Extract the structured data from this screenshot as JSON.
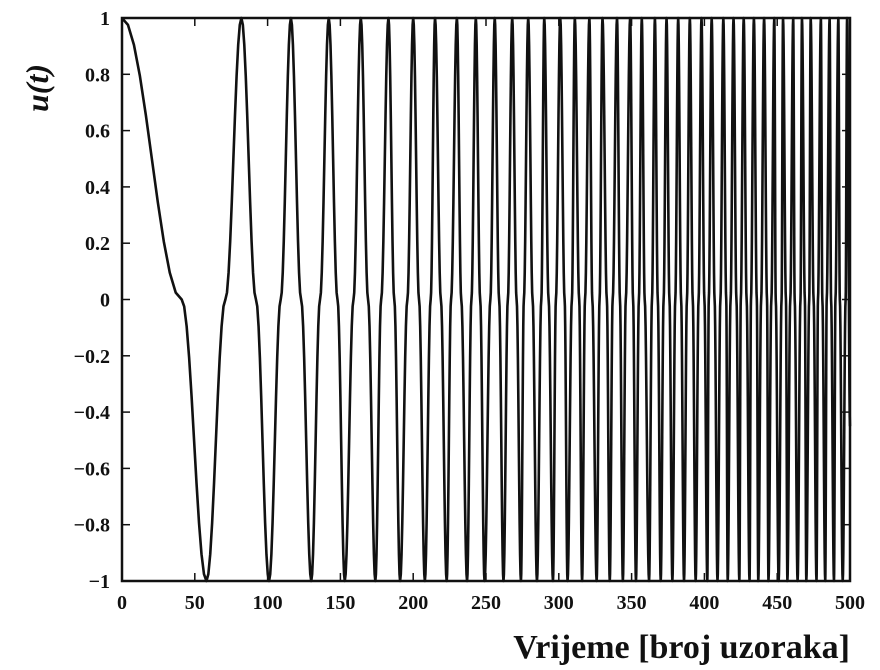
{
  "chart_data": {
    "type": "line",
    "title": "",
    "xlabel": "Vrijeme [broj uzoraka]",
    "ylabel": "u(t)",
    "xlim": [
      0,
      500
    ],
    "ylim": [
      -1,
      1
    ],
    "grid": false,
    "x_ticks": [
      0,
      50,
      100,
      150,
      200,
      250,
      300,
      350,
      400,
      450,
      500
    ],
    "x_tick_labels": [
      "0",
      "50",
      "100",
      "150",
      "200",
      "250",
      "300",
      "350",
      "400",
      "450",
      "500"
    ],
    "y_ticks": [
      1,
      0.8,
      0.6,
      0.4,
      0.2,
      0,
      -0.2,
      -0.4,
      -0.6,
      -0.8,
      -1
    ],
    "y_tick_labels": [
      "1",
      "0.8",
      "0.6",
      "0.4",
      "0.2",
      "0",
      "−0.2",
      "−0.4",
      "−0.6",
      "−0.8",
      "−1"
    ],
    "series": [
      {
        "signal": "linear chirp u(t) = cos(pi * t^2 / 6728), t = 0..500",
        "x": [
          0,
          41,
          58,
          71,
          82,
          92,
          101,
          109,
          116,
          123,
          130,
          136,
          142,
          148,
          153,
          159,
          164,
          169,
          174,
          178,
          183,
          187,
          191,
          196,
          200,
          204,
          208,
          212,
          215,
          219,
          223,
          226,
          230,
          233,
          237,
          240,
          243,
          246,
          249,
          253,
          256,
          259,
          262,
          265,
          268,
          271,
          274,
          276,
          279,
          282,
          285,
          288,
          290,
          293,
          296,
          298,
          301,
          304,
          306,
          309,
          311,
          314,
          316,
          318,
          321,
          323,
          326,
          328,
          330,
          333,
          335,
          337,
          340,
          342,
          344,
          346,
          349,
          351,
          353,
          355,
          357,
          359,
          362,
          364,
          366,
          368,
          370,
          372,
          374,
          376,
          378,
          380,
          382,
          384,
          386,
          388,
          390,
          392,
          394,
          396,
          398,
          400,
          402,
          403,
          405,
          407,
          409,
          411,
          413,
          415,
          416,
          418,
          420,
          422,
          424,
          425,
          427,
          429,
          431,
          432,
          434,
          436,
          437,
          439,
          441,
          443,
          444,
          446,
          448,
          449,
          451,
          453,
          454,
          456,
          457,
          459,
          461,
          462,
          464,
          466,
          467,
          469,
          470,
          472,
          473,
          475,
          477,
          478,
          480,
          481,
          483,
          484,
          486,
          487,
          489,
          490,
          492,
          493,
          495,
          497,
          498,
          500
        ],
        "y": [
          1,
          0,
          -1,
          0,
          1,
          0,
          -1,
          0,
          1,
          0,
          -1,
          0,
          1,
          0,
          -1,
          0,
          1,
          0,
          -1,
          0,
          1,
          0,
          -1,
          0,
          1,
          0,
          -1,
          0,
          1,
          0,
          -1,
          0,
          1,
          0,
          -1,
          0,
          1,
          0,
          -1,
          0,
          1,
          0,
          -1,
          0,
          1,
          0,
          -1,
          0,
          1,
          0,
          -1,
          0,
          1,
          0,
          -1,
          0,
          1,
          0,
          -1,
          0,
          1,
          0,
          -1,
          0,
          1,
          0,
          -1,
          0,
          1,
          0,
          -1,
          0,
          1,
          0,
          -1,
          0,
          1,
          0,
          -1,
          0,
          1,
          0,
          -1,
          0,
          1,
          0,
          -1,
          0,
          1,
          0,
          -1,
          0,
          1,
          0,
          -1,
          0,
          1,
          0,
          -1,
          0,
          1,
          0,
          -1,
          0,
          1,
          0,
          -1,
          0,
          1,
          0,
          -1,
          0,
          1,
          0,
          -1,
          0,
          1,
          0,
          -1,
          0,
          1,
          0,
          -1,
          0,
          1,
          0,
          -1,
          0,
          1,
          0,
          -1,
          0,
          1,
          0,
          -1,
          0,
          1,
          0,
          -1,
          0,
          1,
          0,
          -1,
          0,
          1,
          0,
          -1,
          0,
          1,
          0,
          -1,
          0,
          1,
          0,
          -1,
          0,
          1,
          0,
          -1,
          0,
          1,
          -0.45
        ]
      }
    ],
    "colors": {
      "line": "#111111",
      "axes": "#111111",
      "background": "#ffffff"
    }
  }
}
